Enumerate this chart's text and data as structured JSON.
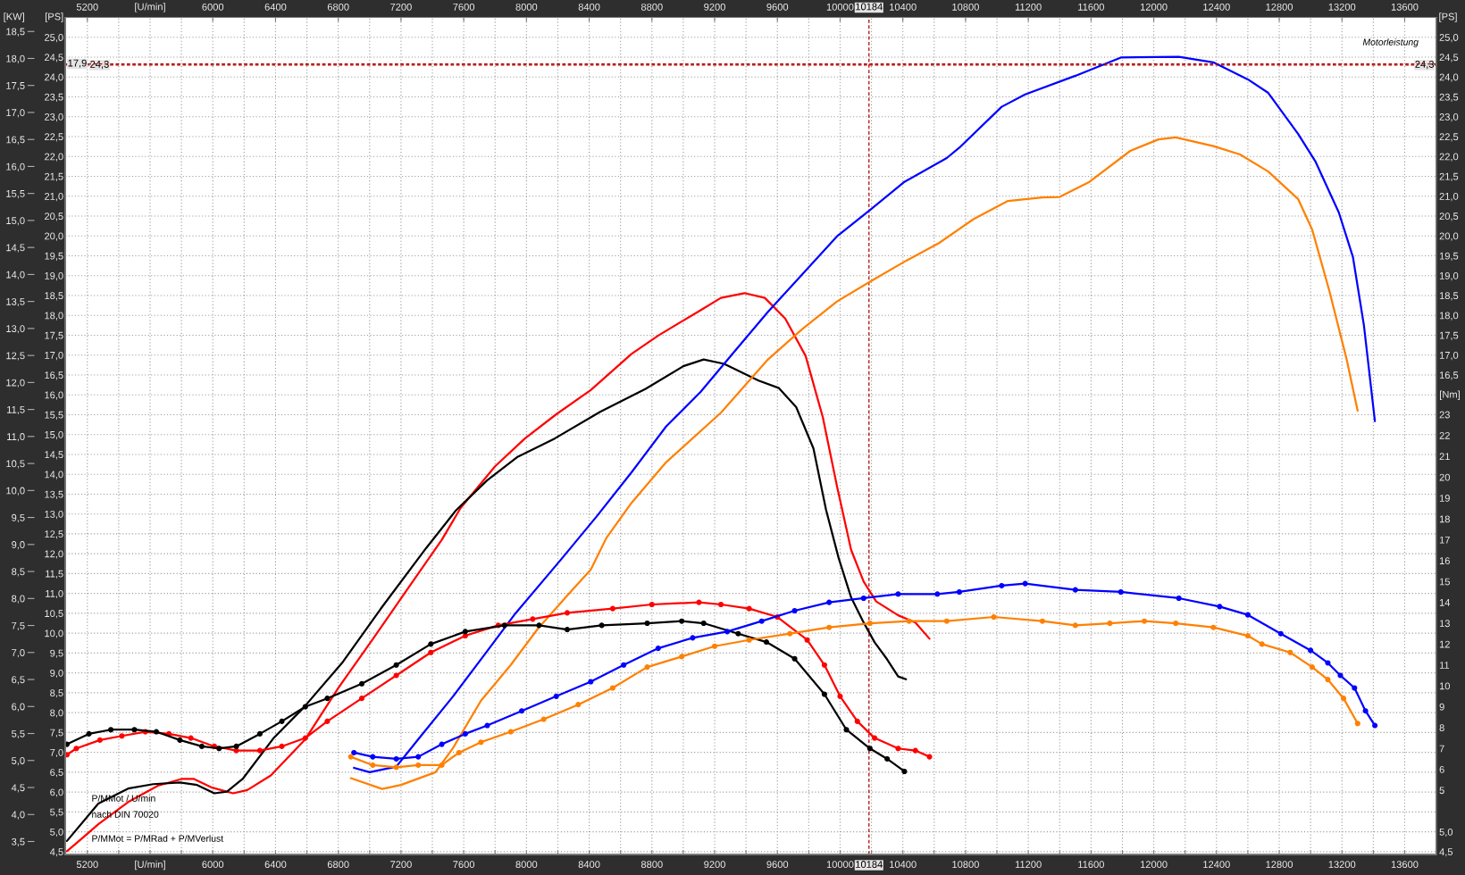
{
  "chart_data": {
    "type": "line",
    "xlabel": "[U/min]",
    "x2label": "[U/min]",
    "ylabel": "[PS]",
    "y2label": "[Nm]",
    "y3label": "[KW]",
    "xlim": [
      5060,
      13800
    ],
    "xticks": [
      5200,
      {
        "value": 5400,
        "label": null
      },
      {
        "value": 5600,
        "label": null
      },
      {
        "value": 5800,
        "label": null
      },
      6000,
      {
        "value": 6200,
        "label": null
      },
      6400,
      {
        "value": 6600,
        "label": null
      },
      6800,
      {
        "value": 7000,
        "label": null
      },
      7200,
      {
        "value": 7400,
        "label": null
      },
      7600,
      {
        "value": 7800,
        "label": null
      },
      8000,
      {
        "value": 8200,
        "label": null
      },
      8400,
      {
        "value": 8600,
        "label": null
      },
      8800,
      {
        "value": 9000,
        "label": null
      },
      9200,
      {
        "value": 9400,
        "label": null
      },
      9600,
      {
        "value": 9800,
        "label": null
      },
      10000,
      {
        "value": 10200,
        "label": null
      },
      10400,
      {
        "value": 10600,
        "label": null
      },
      10800,
      {
        "value": 11000,
        "label": null
      },
      11200,
      {
        "value": 11400,
        "label": null
      },
      11600,
      {
        "value": 11800,
        "label": null
      },
      12000,
      {
        "value": 12200,
        "label": null
      },
      12400,
      {
        "value": 12600,
        "label": null
      },
      12800,
      {
        "value": 13000,
        "label": null
      },
      13200,
      {
        "value": 13400,
        "label": null
      },
      13600
    ],
    "x2lim": [
      5060,
      13800
    ],
    "x2ticks": [
      5200,
      6000,
      6400,
      6800,
      7200,
      7600,
      8000,
      8400,
      8800,
      9200,
      9600,
      10000,
      10400,
      10800,
      11200,
      11600,
      12000,
      12400,
      12800,
      13200,
      13600
    ],
    "ylim": [
      4.43,
      25.5
    ],
    "yticks": [
      {
        "value": 4.5,
        "label": "4,5"
      },
      {
        "value": 5.0,
        "label": "5,0"
      },
      {
        "value": 5.5,
        "label": "5,5"
      },
      {
        "value": 6.0,
        "label": "6,0"
      },
      {
        "value": 6.5,
        "label": "6,5"
      },
      {
        "value": 7.0,
        "label": "7,0"
      },
      {
        "value": 7.5,
        "label": "7,5"
      },
      {
        "value": 8.0,
        "label": "8,0"
      },
      {
        "value": 8.5,
        "label": "8,5"
      },
      {
        "value": 9.0,
        "label": "9,0"
      },
      {
        "value": 9.5,
        "label": "9,5"
      },
      {
        "value": 10.0,
        "label": "10,0"
      },
      {
        "value": 10.5,
        "label": "10,5"
      },
      {
        "value": 11.0,
        "label": "11,0"
      },
      {
        "value": 11.5,
        "label": "11,5"
      },
      {
        "value": 12.0,
        "label": "12,0"
      },
      {
        "value": 12.5,
        "label": "12,5"
      },
      {
        "value": 13.0,
        "label": "13,0"
      },
      {
        "value": 13.5,
        "label": "13,5"
      },
      {
        "value": 14.0,
        "label": "14,0"
      },
      {
        "value": 14.5,
        "label": "14,5"
      },
      {
        "value": 15.0,
        "label": "15,0"
      },
      {
        "value": 15.5,
        "label": "15,5"
      },
      {
        "value": 16.0,
        "label": "16,0"
      },
      {
        "value": 16.5,
        "label": "16,5"
      },
      {
        "value": 17.0,
        "label": "17,0"
      },
      {
        "value": 17.5,
        "label": "17,5"
      },
      {
        "value": 18.0,
        "label": "18,0"
      },
      {
        "value": 18.5,
        "label": "18,5"
      },
      {
        "value": 19.0,
        "label": "19,0"
      },
      {
        "value": 19.5,
        "label": "19,5"
      },
      {
        "value": 20.0,
        "label": "20,0"
      },
      {
        "value": 20.5,
        "label": "20,5"
      },
      {
        "value": 21.0,
        "label": "21,0"
      },
      {
        "value": 21.5,
        "label": "21,5"
      },
      {
        "value": 22.0,
        "label": "22,0"
      },
      {
        "value": 22.5,
        "label": "22,5"
      },
      {
        "value": 23.0,
        "label": "23,0"
      },
      {
        "value": 23.5,
        "label": "23,5"
      },
      {
        "value": 24.0,
        "label": "24,0"
      },
      {
        "value": 24.5,
        "label": "24,5"
      },
      {
        "value": 25.0,
        "label": "25,0"
      }
    ],
    "y2lim": [
      1.92,
      42.03
    ],
    "y2ticks": [
      5,
      6,
      7,
      8,
      9,
      10,
      11,
      12,
      13,
      14,
      15,
      16,
      17,
      18,
      19,
      20,
      21,
      22,
      23
    ],
    "y3lim": [
      3.26,
      18.76
    ],
    "y3ticks": [
      {
        "value": 3.5,
        "label": "3,5"
      },
      {
        "value": 4.0,
        "label": "4,0"
      },
      {
        "value": 4.5,
        "label": "4,5"
      },
      {
        "value": 5.0,
        "label": "5,0"
      },
      {
        "value": 5.5,
        "label": "5,5"
      },
      {
        "value": 6.0,
        "label": "6,0"
      },
      {
        "value": 6.5,
        "label": "6,5"
      },
      {
        "value": 7.0,
        "label": "7,0"
      },
      {
        "value": 7.5,
        "label": "7,5"
      },
      {
        "value": 8.0,
        "label": "8,0"
      },
      {
        "value": 8.5,
        "label": "8,5"
      },
      {
        "value": 9.0,
        "label": "9,0"
      },
      {
        "value": 9.5,
        "label": "9,5"
      },
      {
        "value": 10.0,
        "label": "10,0"
      },
      {
        "value": 10.5,
        "label": "10,5"
      },
      {
        "value": 11.0,
        "label": "11,0"
      },
      {
        "value": 11.5,
        "label": "11,5"
      },
      {
        "value": 12.0,
        "label": "12,0"
      },
      {
        "value": 12.5,
        "label": "12,5"
      },
      {
        "value": 13.0,
        "label": "13,0"
      },
      {
        "value": 13.5,
        "label": "13,5"
      },
      {
        "value": 14.0,
        "label": "14,0"
      },
      {
        "value": 14.5,
        "label": "14,5"
      },
      {
        "value": 15.0,
        "label": "15,0"
      },
      {
        "value": 15.5,
        "label": "15,5"
      },
      {
        "value": 16.0,
        "label": "16,0"
      },
      {
        "value": 16.5,
        "label": "16,5"
      },
      {
        "value": 17.0,
        "label": "17,0"
      },
      {
        "value": 17.5,
        "label": "17,5"
      },
      {
        "value": 18.0,
        "label": "18,0"
      },
      {
        "value": 18.5,
        "label": "18,5"
      }
    ],
    "grid": true,
    "ref_lines": [
      {
        "axis": "x",
        "value": 10184,
        "label": "10184",
        "color": "#b00000",
        "line_style": "dashed"
      },
      {
        "axis": "y3",
        "value": 17.9,
        "label": "17,9",
        "color": "#b00000",
        "line_style": "dashed"
      },
      {
        "axis": "y",
        "value": 24.3,
        "label": "24,3",
        "color": "#b00000",
        "line_style": "dashed"
      }
    ],
    "annotations": [
      "Motorleistung",
      "P/MMot / U/min",
      "nach DIN 70020",
      "P/MMot = P/MRad + P/MVerlust"
    ],
    "series": [
      {
        "color": "#ff0000",
        "x": [
          5070,
          5170,
          5270,
          5460,
          5650,
          5800,
          5880,
          5990,
          6130,
          6220,
          6370,
          6590,
          6800,
          7020,
          7240,
          7460,
          7580,
          7800,
          7990,
          8190,
          8410,
          8670,
          8840,
          9110,
          9240,
          9390,
          9520,
          9650,
          9780,
          9890,
          9980,
          10070,
          10150,
          10230,
          10370,
          10480,
          10570
        ],
        "values": [
          4.51,
          4.85,
          5.19,
          5.75,
          6.16,
          6.33,
          6.33,
          6.12,
          5.97,
          6.05,
          6.42,
          7.33,
          8.62,
          9.85,
          11.1,
          12.35,
          13.15,
          14.2,
          14.9,
          15.51,
          16.12,
          17.03,
          17.49,
          18.13,
          18.44,
          18.56,
          18.44,
          17.92,
          16.98,
          15.43,
          13.7,
          12.1,
          11.3,
          10.8,
          10.45,
          10.27,
          9.86
        ]
      },
      {
        "color": "#000000",
        "x": [
          5070,
          5270,
          5460,
          5620,
          5790,
          5900,
          6010,
          6090,
          6190,
          6390,
          6580,
          6830,
          7070,
          7360,
          7550,
          7750,
          7940,
          8180,
          8470,
          8760,
          9000,
          9130,
          9260,
          9480,
          9610,
          9720,
          9830,
          9910,
          9990,
          10070,
          10150,
          10220,
          10300,
          10370,
          10420
        ],
        "values": [
          4.77,
          5.71,
          6.09,
          6.2,
          6.24,
          6.18,
          5.97,
          6.01,
          6.33,
          7.37,
          8.13,
          9.28,
          10.61,
          12.14,
          13.09,
          13.85,
          14.43,
          14.9,
          15.57,
          16.15,
          16.72,
          16.89,
          16.78,
          16.36,
          16.17,
          15.69,
          14.65,
          13.11,
          11.9,
          10.9,
          10.27,
          9.77,
          9.34,
          8.91,
          8.84
        ]
      },
      {
        "color": "#0000ff",
        "x": [
          6900,
          7000,
          7170,
          7310,
          7530,
          7750,
          7930,
          8230,
          8450,
          8670,
          8890,
          9110,
          9320,
          9540,
          9760,
          9980,
          10200,
          10410,
          10680,
          10760,
          11030,
          11180,
          11500,
          11790,
          12160,
          12380,
          12600,
          12730,
          12920,
          13030,
          13180,
          13270,
          13340,
          13410
        ],
        "values": [
          6.61,
          6.5,
          6.64,
          7.33,
          8.4,
          9.55,
          10.5,
          11.9,
          12.95,
          14.05,
          15.2,
          16.07,
          17.06,
          18.09,
          19.04,
          19.99,
          20.68,
          21.36,
          21.96,
          22.22,
          23.25,
          23.56,
          24.03,
          24.49,
          24.51,
          24.37,
          23.94,
          23.6,
          22.57,
          21.88,
          20.59,
          19.47,
          17.75,
          15.34
        ]
      },
      {
        "color": "#ff8000",
        "x": [
          6880,
          7080,
          7200,
          7420,
          7530,
          7710,
          7900,
          8070,
          8260,
          8410,
          8510,
          8670,
          8890,
          9240,
          9540,
          9760,
          9980,
          10200,
          10410,
          10630,
          10850,
          11070,
          11290,
          11400,
          11590,
          11850,
          12030,
          12140,
          12380,
          12550,
          12730,
          12920,
          13010,
          13120,
          13230,
          13300
        ],
        "values": [
          6.35,
          6.08,
          6.18,
          6.5,
          7.1,
          8.3,
          9.2,
          10.1,
          10.95,
          11.6,
          12.4,
          13.28,
          14.3,
          15.55,
          16.89,
          17.66,
          18.35,
          18.87,
          19.35,
          19.82,
          20.42,
          20.88,
          20.97,
          20.98,
          21.36,
          22.14,
          22.43,
          22.48,
          22.26,
          22.05,
          21.62,
          20.93,
          20.16,
          18.61,
          16.89,
          15.6
        ]
      },
      {
        "axis": "y2",
        "marker": "circle",
        "color": "#ff0000",
        "x": [
          5070,
          5130,
          5280,
          5420,
          5570,
          5720,
          5860,
          6010,
          6150,
          6300,
          6440,
          6590,
          6730,
          6950,
          7170,
          7390,
          7610,
          7820,
          8040,
          8260,
          8550,
          8800,
          9100,
          9240,
          9420,
          9600,
          9790,
          9900,
          10000,
          10110,
          10220,
          10370,
          10480,
          10570
        ],
        "values": [
          6.7,
          7.0,
          7.4,
          7.6,
          7.8,
          7.7,
          7.5,
          7.1,
          6.9,
          6.9,
          7.1,
          7.5,
          8.3,
          9.4,
          10.5,
          11.6,
          12.4,
          12.9,
          13.2,
          13.5,
          13.7,
          13.9,
          14.0,
          13.9,
          13.7,
          13.3,
          12.2,
          11.0,
          9.5,
          8.3,
          7.5,
          7.0,
          6.9,
          6.6
        ]
      },
      {
        "axis": "y2",
        "marker": "circle",
        "color": "#000000",
        "x": [
          5070,
          5210,
          5350,
          5500,
          5640,
          5790,
          5930,
          6040,
          6150,
          6300,
          6440,
          6590,
          6730,
          6950,
          7170,
          7390,
          7610,
          7860,
          8080,
          8260,
          8480,
          8770,
          8990,
          9130,
          9350,
          9530,
          9710,
          9900,
          10040,
          10190,
          10300,
          10410
        ],
        "values": [
          7.2,
          7.7,
          7.9,
          7.9,
          7.8,
          7.4,
          7.1,
          7.0,
          7.1,
          7.7,
          8.3,
          9.0,
          9.4,
          10.1,
          11.0,
          12.0,
          12.6,
          12.9,
          12.9,
          12.7,
          12.9,
          13.0,
          13.1,
          13.0,
          12.5,
          12.1,
          11.3,
          9.6,
          7.9,
          7.0,
          6.5,
          5.9
        ]
      },
      {
        "axis": "y2",
        "marker": "circle",
        "color": "#0000ff",
        "x": [
          6900,
          7020,
          7170,
          7310,
          7460,
          7610,
          7750,
          7970,
          8190,
          8410,
          8620,
          8840,
          9060,
          9280,
          9500,
          9710,
          9930,
          10150,
          10370,
          10620,
          10760,
          11030,
          11180,
          11500,
          11790,
          12160,
          12420,
          12600,
          12810,
          13000,
          13110,
          13190,
          13280,
          13350,
          13410
        ],
        "values": [
          6.8,
          6.6,
          6.5,
          6.6,
          7.2,
          7.7,
          8.1,
          8.8,
          9.5,
          10.2,
          11.0,
          11.8,
          12.3,
          12.6,
          13.1,
          13.6,
          14.0,
          14.2,
          14.4,
          14.4,
          14.5,
          14.8,
          14.9,
          14.6,
          14.5,
          14.2,
          13.8,
          13.4,
          12.5,
          11.7,
          11.1,
          10.5,
          9.9,
          8.8,
          8.1
        ]
      },
      {
        "axis": "y2",
        "marker": "circle",
        "color": "#ff8000",
        "x": [
          6880,
          7020,
          7170,
          7310,
          7460,
          7570,
          7710,
          7900,
          8110,
          8330,
          8550,
          8770,
          8990,
          9200,
          9420,
          9680,
          9930,
          10190,
          10440,
          10680,
          10980,
          11290,
          11500,
          11720,
          11940,
          12140,
          12380,
          12600,
          12690,
          12870,
          13010,
          13110,
          13210,
          13300
        ],
        "values": [
          6.6,
          6.2,
          6.1,
          6.2,
          6.2,
          6.8,
          7.3,
          7.8,
          8.4,
          9.1,
          9.9,
          10.9,
          11.4,
          11.9,
          12.2,
          12.5,
          12.8,
          13.0,
          13.1,
          13.1,
          13.3,
          13.1,
          12.9,
          13.0,
          13.1,
          13.0,
          12.8,
          12.4,
          12.0,
          11.6,
          10.9,
          10.3,
          9.4,
          8.2
        ]
      }
    ]
  }
}
